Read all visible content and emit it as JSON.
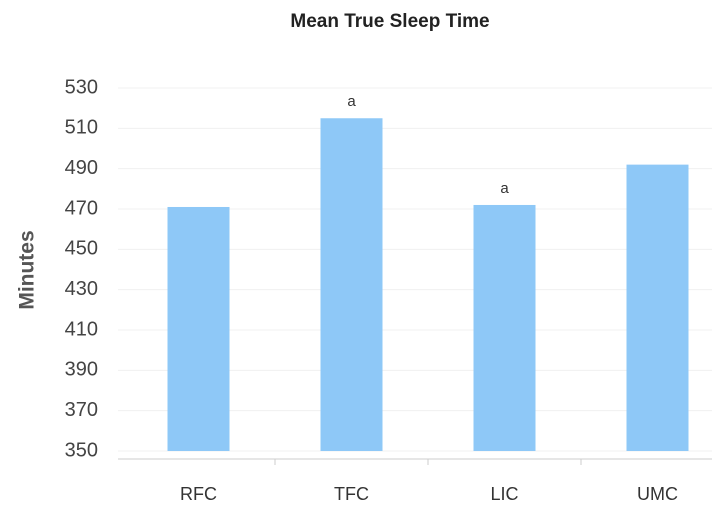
{
  "chart_data": {
    "type": "bar",
    "title": "Mean True Sleep Time",
    "y_label": "Minutes",
    "categories": [
      "RFC",
      "TFC",
      "LIC",
      "UMC"
    ],
    "values": [
      471,
      515,
      472,
      492
    ],
    "color": "#8ec8f7",
    "ylim": [
      350,
      530
    ],
    "yticks": [
      350,
      370,
      390,
      410,
      430,
      450,
      470,
      490,
      510,
      530
    ],
    "grid": true,
    "annotations": [
      {
        "category": "TFC",
        "text": "a"
      },
      {
        "category": "LIC",
        "text": "a"
      }
    ]
  }
}
